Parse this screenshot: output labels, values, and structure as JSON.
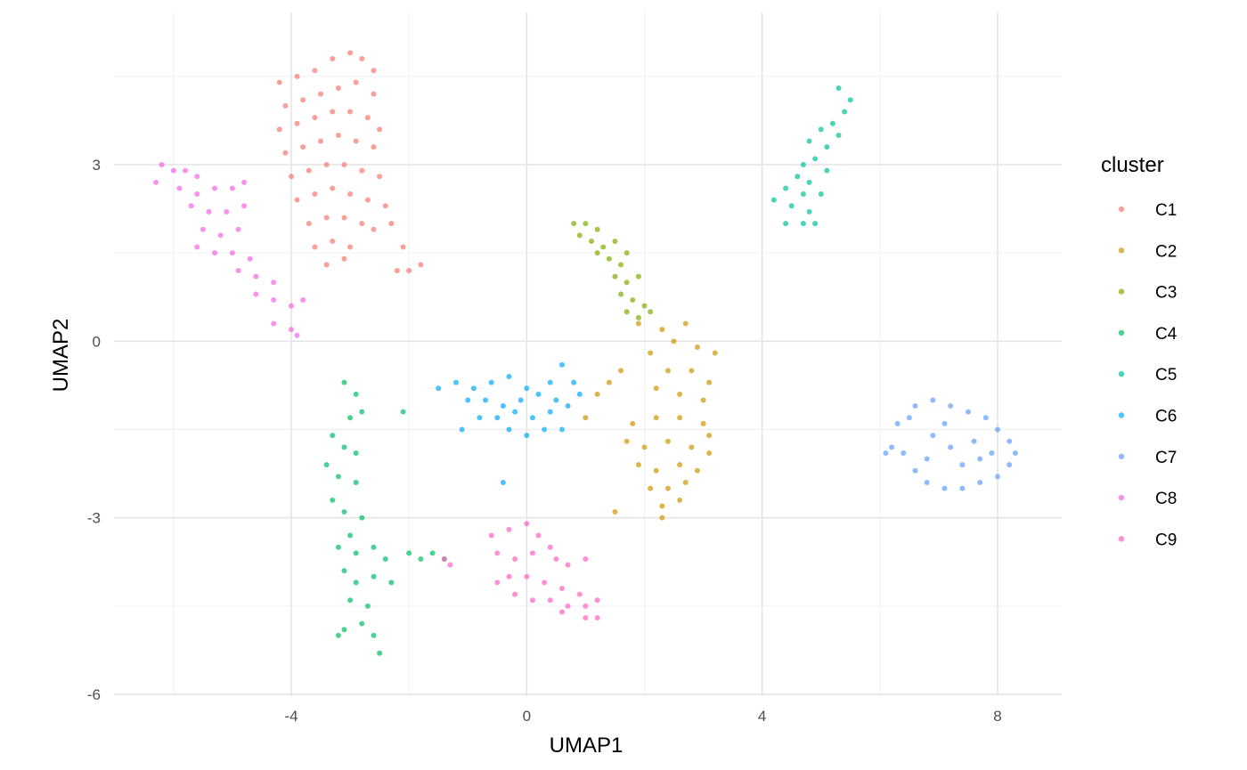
{
  "chart_data": {
    "type": "scatter",
    "xlabel": "UMAP1",
    "ylabel": "UMAP2",
    "xlim": [
      -7.0,
      9.1
    ],
    "ylim": [
      -6.0,
      5.1
    ],
    "x_ticks": [
      -4,
      0,
      4,
      8
    ],
    "x_tick_labels": [
      "-4",
      "0",
      "4",
      "8"
    ],
    "y_ticks": [
      -6,
      -3,
      0,
      3
    ],
    "y_tick_labels": [
      "-6",
      "-3",
      "0",
      "3"
    ],
    "x_minor_ticks": [
      -6,
      -2,
      2,
      6
    ],
    "y_minor_ticks": [
      -4.5,
      -1.5,
      1.5,
      4.5
    ],
    "grid": true,
    "legend": {
      "title": "cluster",
      "placement": "right",
      "entries": [
        "C1",
        "C2",
        "C3",
        "C4",
        "C5",
        "C6",
        "C7",
        "C8",
        "C9"
      ]
    },
    "series": [
      {
        "name": "C1",
        "color": "#F8766D",
        "points": [
          [
            -4.2,
            4.4
          ],
          [
            -3.9,
            4.5
          ],
          [
            -3.6,
            4.6
          ],
          [
            -3.3,
            4.8
          ],
          [
            -3.0,
            4.9
          ],
          [
            -2.8,
            4.8
          ],
          [
            -2.6,
            4.6
          ],
          [
            -4.1,
            4.0
          ],
          [
            -3.8,
            4.1
          ],
          [
            -3.5,
            4.2
          ],
          [
            -3.2,
            4.3
          ],
          [
            -2.9,
            4.4
          ],
          [
            -2.6,
            4.2
          ],
          [
            -4.2,
            3.6
          ],
          [
            -3.9,
            3.7
          ],
          [
            -3.6,
            3.8
          ],
          [
            -3.3,
            3.9
          ],
          [
            -3.0,
            3.9
          ],
          [
            -2.7,
            3.8
          ],
          [
            -2.5,
            3.6
          ],
          [
            -4.1,
            3.2
          ],
          [
            -3.8,
            3.3
          ],
          [
            -3.5,
            3.4
          ],
          [
            -3.2,
            3.5
          ],
          [
            -2.9,
            3.4
          ],
          [
            -2.6,
            3.3
          ],
          [
            -4.0,
            2.8
          ],
          [
            -3.7,
            2.9
          ],
          [
            -3.4,
            3.0
          ],
          [
            -3.1,
            3.0
          ],
          [
            -2.8,
            2.9
          ],
          [
            -2.5,
            2.8
          ],
          [
            -3.9,
            2.4
          ],
          [
            -3.6,
            2.5
          ],
          [
            -3.3,
            2.6
          ],
          [
            -3.0,
            2.5
          ],
          [
            -2.7,
            2.4
          ],
          [
            -2.4,
            2.3
          ],
          [
            -2.3,
            2.0
          ],
          [
            -3.7,
            2.0
          ],
          [
            -3.4,
            2.1
          ],
          [
            -3.1,
            2.1
          ],
          [
            -2.8,
            2.0
          ],
          [
            -2.6,
            1.9
          ],
          [
            -3.6,
            1.6
          ],
          [
            -3.3,
            1.7
          ],
          [
            -3.0,
            1.6
          ],
          [
            -3.4,
            1.3
          ],
          [
            -3.1,
            1.4
          ],
          [
            -2.2,
            1.2
          ],
          [
            -2.0,
            1.2
          ],
          [
            -2.1,
            1.6
          ],
          [
            -1.8,
            1.3
          ]
        ]
      },
      {
        "name": "C2",
        "color": "#CD9600",
        "points": [
          [
            1.9,
            0.3
          ],
          [
            2.3,
            0.2
          ],
          [
            2.7,
            0.3
          ],
          [
            2.5,
            0.0
          ],
          [
            2.9,
            -0.1
          ],
          [
            3.2,
            -0.2
          ],
          [
            2.1,
            -0.2
          ],
          [
            2.4,
            -0.5
          ],
          [
            2.8,
            -0.5
          ],
          [
            3.1,
            -0.7
          ],
          [
            2.2,
            -0.8
          ],
          [
            2.6,
            -0.9
          ],
          [
            3.0,
            -1.0
          ],
          [
            1.4,
            -0.7
          ],
          [
            1.6,
            -0.5
          ],
          [
            1.2,
            -0.9
          ],
          [
            1.0,
            -1.3
          ],
          [
            1.8,
            -1.4
          ],
          [
            2.2,
            -1.3
          ],
          [
            2.6,
            -1.3
          ],
          [
            3.0,
            -1.4
          ],
          [
            3.1,
            -1.6
          ],
          [
            1.7,
            -1.7
          ],
          [
            2.0,
            -1.8
          ],
          [
            2.4,
            -1.7
          ],
          [
            2.8,
            -1.8
          ],
          [
            3.1,
            -1.9
          ],
          [
            1.9,
            -2.1
          ],
          [
            2.2,
            -2.2
          ],
          [
            2.6,
            -2.1
          ],
          [
            2.9,
            -2.2
          ],
          [
            2.1,
            -2.5
          ],
          [
            2.4,
            -2.5
          ],
          [
            2.7,
            -2.4
          ],
          [
            2.3,
            -2.8
          ],
          [
            2.6,
            -2.7
          ],
          [
            2.3,
            -3.0
          ],
          [
            1.5,
            -2.9
          ]
        ]
      },
      {
        "name": "C3",
        "color": "#7CAE00",
        "points": [
          [
            0.8,
            2.0
          ],
          [
            1.0,
            2.0
          ],
          [
            1.2,
            1.9
          ],
          [
            0.9,
            1.8
          ],
          [
            1.1,
            1.7
          ],
          [
            1.3,
            1.6
          ],
          [
            1.5,
            1.7
          ],
          [
            1.2,
            1.5
          ],
          [
            1.4,
            1.4
          ],
          [
            1.6,
            1.3
          ],
          [
            1.7,
            1.5
          ],
          [
            1.5,
            1.1
          ],
          [
            1.7,
            1.0
          ],
          [
            1.9,
            1.1
          ],
          [
            1.6,
            0.8
          ],
          [
            1.8,
            0.7
          ],
          [
            2.0,
            0.6
          ],
          [
            1.7,
            0.5
          ],
          [
            1.9,
            0.4
          ],
          [
            2.1,
            0.5
          ]
        ]
      },
      {
        "name": "C4",
        "color": "#00BE67",
        "points": [
          [
            -3.1,
            -0.7
          ],
          [
            -2.9,
            -0.9
          ],
          [
            -2.8,
            -1.2
          ],
          [
            -3.0,
            -1.3
          ],
          [
            -3.3,
            -1.6
          ],
          [
            -3.1,
            -1.8
          ],
          [
            -2.9,
            -1.9
          ],
          [
            -3.4,
            -2.1
          ],
          [
            -3.2,
            -2.3
          ],
          [
            -2.9,
            -2.4
          ],
          [
            -3.3,
            -2.7
          ],
          [
            -3.1,
            -2.9
          ],
          [
            -2.8,
            -3.0
          ],
          [
            -3.0,
            -3.3
          ],
          [
            -3.2,
            -3.5
          ],
          [
            -2.9,
            -3.6
          ],
          [
            -2.6,
            -3.5
          ],
          [
            -2.4,
            -3.7
          ],
          [
            -3.1,
            -3.9
          ],
          [
            -2.9,
            -4.1
          ],
          [
            -2.6,
            -4.0
          ],
          [
            -2.3,
            -4.1
          ],
          [
            -3.0,
            -4.4
          ],
          [
            -2.7,
            -4.5
          ],
          [
            -2.8,
            -4.8
          ],
          [
            -3.1,
            -4.9
          ],
          [
            -2.6,
            -5.0
          ],
          [
            -2.5,
            -5.3
          ],
          [
            -3.2,
            -5.0
          ],
          [
            -2.1,
            -1.2
          ],
          [
            -2.0,
            -3.6
          ],
          [
            -1.8,
            -3.7
          ],
          [
            -1.6,
            -3.6
          ],
          [
            -1.4,
            -3.7
          ]
        ]
      },
      {
        "name": "C5",
        "color": "#00C19A",
        "points": [
          [
            5.3,
            4.3
          ],
          [
            5.5,
            4.1
          ],
          [
            5.4,
            3.9
          ],
          [
            5.2,
            3.7
          ],
          [
            5.0,
            3.6
          ],
          [
            5.3,
            3.5
          ],
          [
            4.8,
            3.4
          ],
          [
            5.1,
            3.3
          ],
          [
            4.9,
            3.1
          ],
          [
            4.7,
            3.0
          ],
          [
            5.1,
            2.9
          ],
          [
            4.6,
            2.8
          ],
          [
            4.8,
            2.7
          ],
          [
            4.4,
            2.6
          ],
          [
            4.7,
            2.5
          ],
          [
            5.0,
            2.5
          ],
          [
            4.2,
            2.4
          ],
          [
            4.5,
            2.3
          ],
          [
            4.8,
            2.2
          ],
          [
            4.4,
            2.0
          ],
          [
            4.7,
            2.0
          ],
          [
            4.9,
            2.0
          ]
        ]
      },
      {
        "name": "C6",
        "color": "#00A9FF",
        "points": [
          [
            -1.5,
            -0.8
          ],
          [
            -1.2,
            -0.7
          ],
          [
            -0.9,
            -0.8
          ],
          [
            -0.6,
            -0.7
          ],
          [
            -0.3,
            -0.6
          ],
          [
            0.0,
            -0.8
          ],
          [
            0.4,
            -0.7
          ],
          [
            0.6,
            -0.4
          ],
          [
            0.8,
            -0.7
          ],
          [
            0.9,
            -0.9
          ],
          [
            -1.0,
            -1.0
          ],
          [
            -0.7,
            -1.0
          ],
          [
            -0.4,
            -1.1
          ],
          [
            -0.1,
            -1.0
          ],
          [
            0.2,
            -0.9
          ],
          [
            0.5,
            -1.0
          ],
          [
            -0.8,
            -1.3
          ],
          [
            -0.5,
            -1.3
          ],
          [
            -0.2,
            -1.2
          ],
          [
            0.1,
            -1.3
          ],
          [
            0.4,
            -1.2
          ],
          [
            0.7,
            -1.1
          ],
          [
            -0.3,
            -1.5
          ],
          [
            0.0,
            -1.6
          ],
          [
            0.3,
            -1.5
          ],
          [
            0.6,
            -1.5
          ],
          [
            -1.1,
            -1.5
          ],
          [
            -0.4,
            -2.4
          ]
        ]
      },
      {
        "name": "C7",
        "color": "#619CFF",
        "points": [
          [
            6.6,
            -1.1
          ],
          [
            6.9,
            -1.0
          ],
          [
            7.2,
            -1.1
          ],
          [
            7.5,
            -1.2
          ],
          [
            7.8,
            -1.3
          ],
          [
            8.0,
            -1.5
          ],
          [
            8.2,
            -1.7
          ],
          [
            8.3,
            -1.9
          ],
          [
            8.2,
            -2.1
          ],
          [
            8.0,
            -2.3
          ],
          [
            7.7,
            -2.4
          ],
          [
            7.4,
            -2.5
          ],
          [
            7.1,
            -2.5
          ],
          [
            6.8,
            -2.4
          ],
          [
            6.6,
            -2.2
          ],
          [
            6.4,
            -1.9
          ],
          [
            6.2,
            -1.8
          ],
          [
            6.1,
            -1.9
          ],
          [
            6.3,
            -1.4
          ],
          [
            6.5,
            -1.3
          ],
          [
            6.9,
            -1.6
          ],
          [
            7.2,
            -1.8
          ],
          [
            7.6,
            -1.7
          ],
          [
            7.9,
            -1.9
          ],
          [
            7.1,
            -1.4
          ],
          [
            7.4,
            -2.1
          ],
          [
            6.8,
            -2.0
          ],
          [
            7.7,
            -2.0
          ]
        ]
      },
      {
        "name": "C8",
        "color": "#F564E3",
        "points": [
          [
            -6.2,
            3.0
          ],
          [
            -6.0,
            2.9
          ],
          [
            -5.8,
            2.9
          ],
          [
            -5.6,
            2.8
          ],
          [
            -5.9,
            2.6
          ],
          [
            -5.6,
            2.5
          ],
          [
            -5.3,
            2.6
          ],
          [
            -5.0,
            2.6
          ],
          [
            -4.8,
            2.7
          ],
          [
            -5.7,
            2.3
          ],
          [
            -5.4,
            2.2
          ],
          [
            -5.1,
            2.2
          ],
          [
            -4.8,
            2.3
          ],
          [
            -5.5,
            1.9
          ],
          [
            -5.2,
            1.8
          ],
          [
            -4.9,
            1.9
          ],
          [
            -5.6,
            1.6
          ],
          [
            -5.3,
            1.5
          ],
          [
            -5.0,
            1.5
          ],
          [
            -4.7,
            1.4
          ],
          [
            -4.9,
            1.2
          ],
          [
            -4.6,
            1.1
          ],
          [
            -4.3,
            1.0
          ],
          [
            -4.6,
            0.8
          ],
          [
            -4.3,
            0.7
          ],
          [
            -4.0,
            0.6
          ],
          [
            -4.3,
            0.3
          ],
          [
            -4.0,
            0.2
          ],
          [
            -3.9,
            0.1
          ],
          [
            -3.8,
            0.7
          ],
          [
            -6.3,
            2.7
          ]
        ]
      },
      {
        "name": "C9",
        "color": "#FF61C3",
        "points": [
          [
            -0.6,
            -3.3
          ],
          [
            -0.3,
            -3.2
          ],
          [
            0.0,
            -3.1
          ],
          [
            0.2,
            -3.3
          ],
          [
            0.4,
            -3.5
          ],
          [
            -0.5,
            -3.6
          ],
          [
            -0.2,
            -3.7
          ],
          [
            0.1,
            -3.6
          ],
          [
            0.5,
            -3.7
          ],
          [
            0.7,
            -3.8
          ],
          [
            -0.3,
            -4.0
          ],
          [
            0.0,
            -4.0
          ],
          [
            0.3,
            -4.1
          ],
          [
            0.6,
            -4.2
          ],
          [
            0.9,
            -4.3
          ],
          [
            -0.5,
            -4.1
          ],
          [
            -0.2,
            -4.3
          ],
          [
            0.1,
            -4.4
          ],
          [
            0.4,
            -4.4
          ],
          [
            0.7,
            -4.5
          ],
          [
            1.0,
            -4.5
          ],
          [
            1.2,
            -4.4
          ],
          [
            1.0,
            -4.7
          ],
          [
            1.2,
            -4.7
          ],
          [
            0.6,
            -4.6
          ],
          [
            -1.4,
            -3.7
          ],
          [
            -1.3,
            -3.8
          ],
          [
            1.0,
            -3.7
          ]
        ]
      }
    ]
  }
}
